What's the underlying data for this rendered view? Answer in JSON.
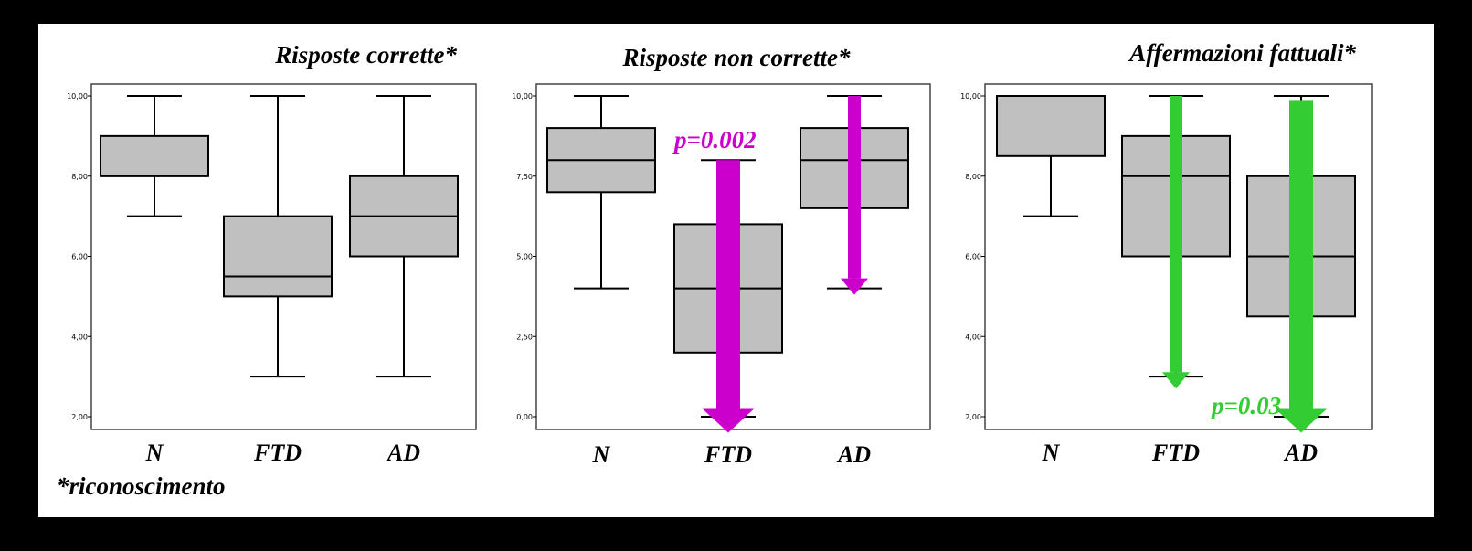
{
  "footnote": "*riconoscimento",
  "colors": {
    "background": "#000000",
    "panel": "#ffffff",
    "box_fill": "#c0c0c0",
    "line": "#000000",
    "magenta": "#cc00cc",
    "green": "#33cc33"
  },
  "chart_data": [
    {
      "type": "box",
      "title": "Risposte corrette*",
      "categories": [
        "N",
        "FTD",
        "AD"
      ],
      "yticks": [
        "2,00",
        "4,00",
        "6,00",
        "8,00",
        "10,00"
      ],
      "ylim": [
        2,
        10
      ],
      "boxes": [
        {
          "name": "N",
          "min": 7,
          "q1": 8,
          "median": 8,
          "q3": 9,
          "max": 10
        },
        {
          "name": "FTD",
          "min": 3,
          "q1": 5,
          "median": 5.5,
          "q3": 7,
          "max": 10
        },
        {
          "name": "AD",
          "min": 3,
          "q1": 6,
          "median": 7,
          "q3": 8,
          "max": 10
        }
      ],
      "arrows": [],
      "pvalue": null
    },
    {
      "type": "box",
      "title": "Risposte non corrette*",
      "categories": [
        "N",
        "FTD",
        "AD"
      ],
      "yticks": [
        "0,00",
        "2,50",
        "5,00",
        "7,50",
        "10,00"
      ],
      "ylim": [
        0,
        10
      ],
      "boxes": [
        {
          "name": "N",
          "min": 4,
          "q1": 7,
          "median": 8,
          "q3": 9,
          "max": 10
        },
        {
          "name": "FTD",
          "min": 0,
          "q1": 2,
          "median": 4,
          "q3": 6,
          "max": 8
        },
        {
          "name": "AD",
          "min": 4,
          "q1": 6.5,
          "median": 8,
          "q3": 9,
          "max": 10
        }
      ],
      "arrows": [
        {
          "category": "FTD",
          "from": 8,
          "to": -0.5,
          "color": "magenta",
          "width": "thick"
        },
        {
          "category": "AD",
          "from": 10,
          "to": 3.8,
          "color": "magenta",
          "width": "thin"
        }
      ],
      "pvalue": {
        "text": "p=0.002",
        "color": "magenta"
      }
    },
    {
      "type": "box",
      "title": "Affermazioni fattuali*",
      "categories": [
        "N",
        "FTD",
        "AD"
      ],
      "yticks": [
        "2,00",
        "4,00",
        "6,00",
        "8,00",
        "10,00"
      ],
      "ylim": [
        2,
        10
      ],
      "boxes": [
        {
          "name": "N",
          "min": 7,
          "q1": 8.5,
          "median": 10,
          "q3": 10,
          "max": 10
        },
        {
          "name": "FTD",
          "min": 3,
          "q1": 6,
          "median": 8,
          "q3": 9,
          "max": 10
        },
        {
          "name": "AD",
          "min": 2,
          "q1": 4.5,
          "median": 6,
          "q3": 8,
          "max": 10
        }
      ],
      "arrows": [
        {
          "category": "FTD",
          "from": 10,
          "to": 2.7,
          "color": "green",
          "width": "thin"
        },
        {
          "category": "AD",
          "from": 9.9,
          "to": 1.6,
          "color": "green",
          "width": "thick"
        }
      ],
      "pvalue": {
        "text": "p=0.03",
        "color": "green"
      }
    }
  ]
}
